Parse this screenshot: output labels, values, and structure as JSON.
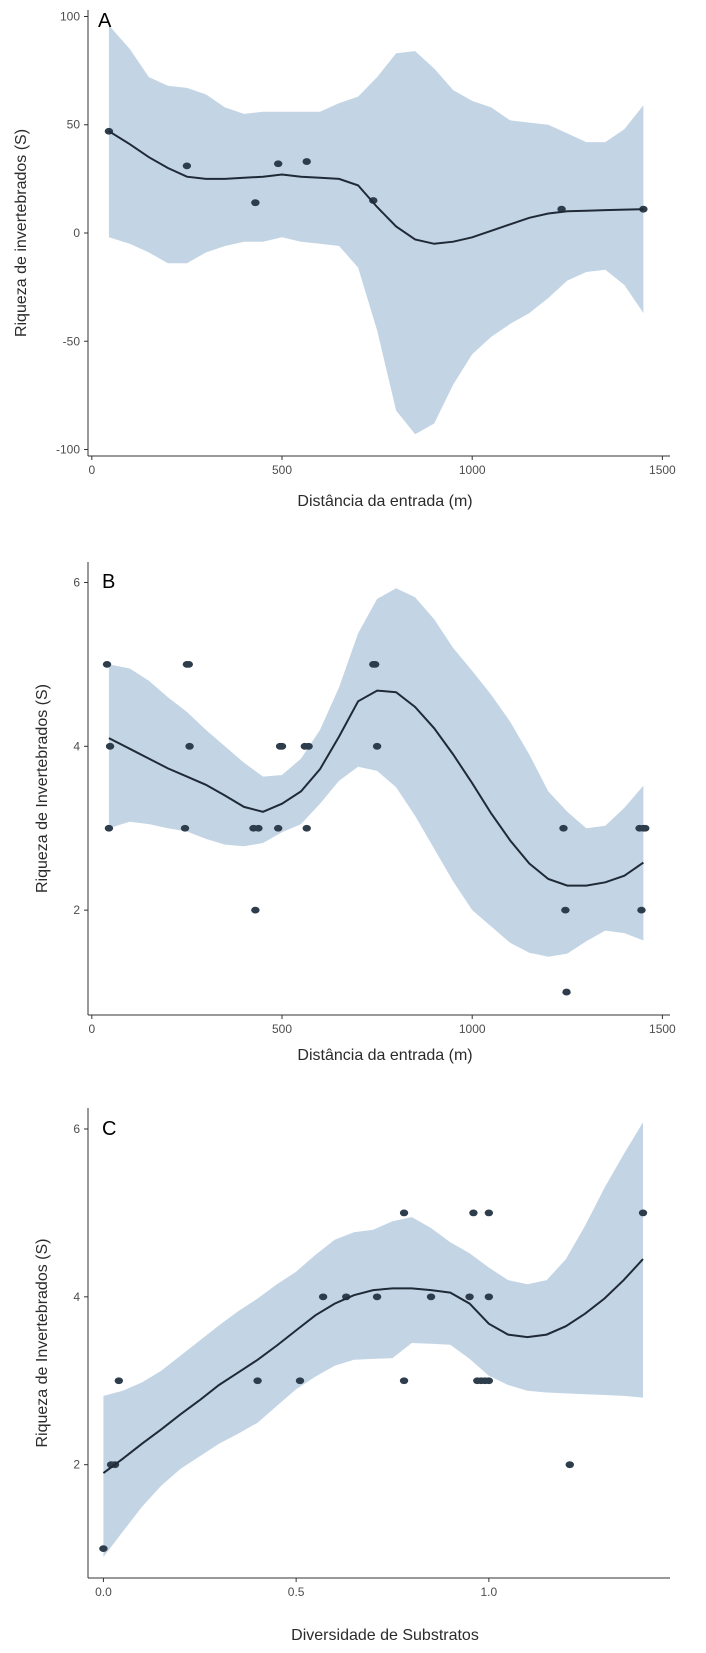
{
  "colors": {
    "band": "#c3d5e5",
    "line": "#1f2a36",
    "point": "#2e3d4c"
  },
  "chart_data": [
    {
      "type": "scatter",
      "panel_label": "A",
      "xlabel": "Distância da entrada (m)",
      "ylabel": "Riqueza de invertebrados (S)",
      "xlim": [
        -10,
        1520
      ],
      "ylim": [
        -103,
        103
      ],
      "xticks": [
        0,
        500,
        1000,
        1500
      ],
      "xtick_labels": [
        "0",
        "500",
        "1000",
        "1500"
      ],
      "yticks": [
        -100,
        -50,
        0,
        50,
        100
      ],
      "ytick_labels": [
        "-100",
        "-50",
        "0",
        "50",
        "100"
      ],
      "grid": false,
      "points": {
        "x": [
          45,
          250,
          430,
          490,
          565,
          740,
          1235,
          1450
        ],
        "y": [
          47,
          31,
          14,
          32,
          33,
          15,
          11,
          11
        ]
      },
      "fit": {
        "x": [
          45,
          100,
          150,
          200,
          250,
          300,
          350,
          400,
          450,
          500,
          550,
          600,
          650,
          700,
          750,
          800,
          850,
          900,
          950,
          1000,
          1050,
          1100,
          1150,
          1200,
          1250,
          1300,
          1350,
          1400,
          1450
        ],
        "y": [
          47,
          41,
          35,
          30,
          26,
          25,
          25,
          25.5,
          26,
          27,
          26,
          25.5,
          25,
          22,
          12,
          3,
          -3,
          -5,
          -4,
          -2,
          1,
          4,
          7,
          9,
          10,
          10.3,
          10.6,
          10.8,
          11
        ],
        "lower": [
          -2,
          -5,
          -9,
          -14,
          -14,
          -9,
          -6,
          -4,
          -4,
          -2,
          -4,
          -5,
          -6,
          -16,
          -45,
          -82,
          -93,
          -88,
          -70,
          -56,
          -48,
          -42,
          -37,
          -30,
          -22,
          -18,
          -17,
          -24,
          -37
        ],
        "upper": [
          96,
          85,
          72,
          68,
          67,
          64,
          58,
          55,
          56,
          56,
          56,
          56,
          60,
          63,
          72,
          83,
          84,
          76,
          66,
          61,
          58,
          52,
          51,
          50,
          46,
          42,
          42,
          48,
          59
        ]
      }
    },
    {
      "type": "scatter",
      "panel_label": "B",
      "xlabel": "Distância da entrada (m)",
      "ylabel": "Riqueza de Invertebrados (S)",
      "xlim": [
        -10,
        1520
      ],
      "ylim": [
        0.72,
        6.25
      ],
      "xticks": [
        0,
        500,
        1000,
        1500
      ],
      "xtick_labels": [
        "0",
        "500",
        "1000",
        "1500"
      ],
      "yticks": [
        2,
        4,
        6
      ],
      "ytick_labels": [
        "2",
        "4",
        "6"
      ],
      "grid": false,
      "points": {
        "x": [
          40,
          45,
          48,
          245,
          250,
          255,
          257,
          425,
          430,
          438,
          490,
          495,
          500,
          560,
          565,
          570,
          740,
          745,
          750,
          1240,
          1245,
          1248,
          1440,
          1445,
          1450,
          1455
        ],
        "y": [
          5,
          3,
          4,
          3,
          5,
          5,
          4,
          3,
          2,
          3,
          3,
          4,
          4,
          4,
          3,
          4,
          5,
          5,
          4,
          3,
          2,
          1,
          3,
          2,
          3,
          3
        ]
      },
      "fit": {
        "x": [
          45,
          100,
          150,
          200,
          250,
          300,
          350,
          400,
          450,
          500,
          550,
          600,
          650,
          700,
          750,
          800,
          850,
          900,
          950,
          1000,
          1050,
          1100,
          1150,
          1200,
          1250,
          1300,
          1350,
          1400,
          1450
        ],
        "y": [
          4.1,
          3.97,
          3.85,
          3.73,
          3.63,
          3.53,
          3.4,
          3.26,
          3.2,
          3.3,
          3.45,
          3.72,
          4.12,
          4.55,
          4.68,
          4.66,
          4.48,
          4.22,
          3.9,
          3.55,
          3.18,
          2.85,
          2.57,
          2.38,
          2.3,
          2.3,
          2.34,
          2.42,
          2.58
        ],
        "lower": [
          3.0,
          3.08,
          3.05,
          3.0,
          2.96,
          2.87,
          2.8,
          2.78,
          2.82,
          2.95,
          3.05,
          3.3,
          3.58,
          3.75,
          3.7,
          3.5,
          3.15,
          2.75,
          2.35,
          2.0,
          1.8,
          1.6,
          1.48,
          1.43,
          1.47,
          1.62,
          1.75,
          1.72,
          1.63
        ],
        "upper": [
          5.0,
          4.95,
          4.8,
          4.6,
          4.42,
          4.2,
          4.0,
          3.8,
          3.63,
          3.65,
          3.85,
          4.2,
          4.72,
          5.38,
          5.8,
          5.93,
          5.82,
          5.55,
          5.2,
          4.92,
          4.63,
          4.3,
          3.9,
          3.45,
          3.2,
          3.0,
          3.03,
          3.25,
          3.52
        ]
      }
    },
    {
      "type": "scatter",
      "panel_label": "C",
      "xlabel": "Diversidade de Substratos",
      "ylabel": "Riqueza de Invertebrados (S)",
      "xlim": [
        -0.04,
        1.47
      ],
      "ylim": [
        0.65,
        6.25
      ],
      "xticks": [
        0.0,
        0.5,
        1.0
      ],
      "xtick_labels": [
        "0.0",
        "0.5",
        "1.0"
      ],
      "yticks": [
        2,
        4,
        6
      ],
      "ytick_labels": [
        "2",
        "4",
        "6"
      ],
      "grid": false,
      "points": {
        "x": [
          0.0,
          0.02,
          0.03,
          0.04,
          0.4,
          0.51,
          0.57,
          0.63,
          0.71,
          0.78,
          0.78,
          0.85,
          0.95,
          0.96,
          0.97,
          0.98,
          0.99,
          1.0,
          1.0,
          1.0,
          1.21,
          1.4
        ],
        "y": [
          1,
          2,
          2,
          3,
          3,
          3,
          4,
          4,
          4,
          5,
          3,
          4,
          4,
          5,
          3,
          3,
          3,
          5,
          4,
          3,
          2,
          5
        ]
      },
      "fit": {
        "x": [
          0.0,
          0.05,
          0.1,
          0.15,
          0.2,
          0.25,
          0.3,
          0.35,
          0.4,
          0.45,
          0.5,
          0.55,
          0.6,
          0.65,
          0.7,
          0.75,
          0.8,
          0.85,
          0.9,
          0.95,
          1.0,
          1.05,
          1.1,
          1.15,
          1.2,
          1.25,
          1.3,
          1.35,
          1.4
        ],
        "y": [
          1.9,
          2.07,
          2.25,
          2.42,
          2.6,
          2.77,
          2.95,
          3.1,
          3.25,
          3.42,
          3.6,
          3.78,
          3.92,
          4.02,
          4.08,
          4.1,
          4.1,
          4.08,
          4.05,
          3.92,
          3.68,
          3.55,
          3.52,
          3.55,
          3.65,
          3.8,
          3.98,
          4.2,
          4.45
        ],
        "lower": [
          0.9,
          1.2,
          1.5,
          1.75,
          1.95,
          2.1,
          2.25,
          2.37,
          2.5,
          2.7,
          2.9,
          3.05,
          3.18,
          3.25,
          3.26,
          3.27,
          3.45,
          3.44,
          3.43,
          3.26,
          3.06,
          2.95,
          2.88,
          2.86,
          2.85,
          2.84,
          2.83,
          2.82,
          2.8
        ],
        "upper": [
          2.82,
          2.88,
          2.98,
          3.12,
          3.3,
          3.48,
          3.66,
          3.83,
          3.98,
          4.15,
          4.3,
          4.5,
          4.68,
          4.77,
          4.8,
          4.9,
          4.95,
          4.82,
          4.65,
          4.52,
          4.35,
          4.2,
          4.15,
          4.2,
          4.45,
          4.85,
          5.3,
          5.7,
          6.08
        ]
      }
    }
  ]
}
